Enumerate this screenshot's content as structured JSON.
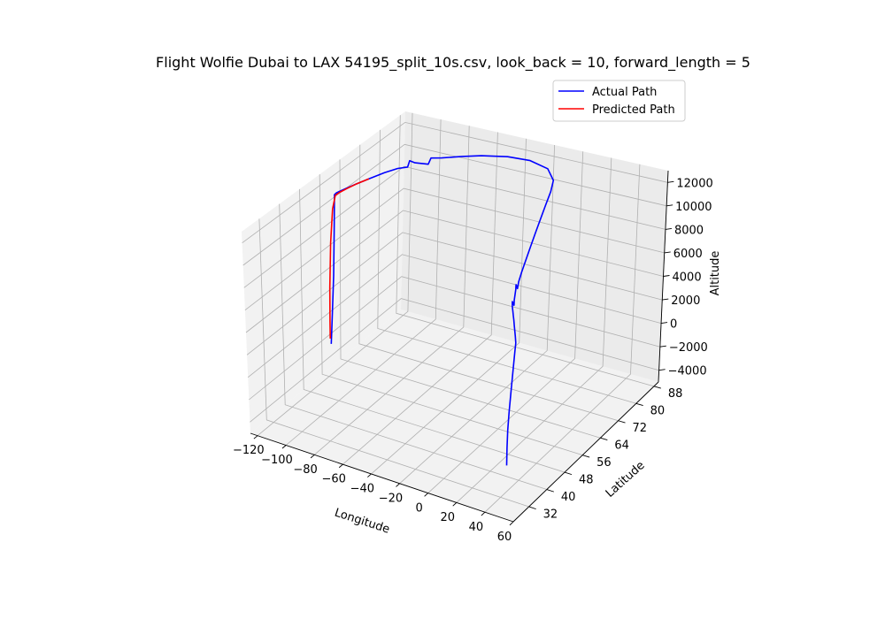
{
  "chart_data": {
    "type": "line",
    "projection": "3d",
    "title": "Flight Wolfie Dubai to LAX 54195_split_10s.csv, look_back = 10, forward_length = 5",
    "xlabel": "Longitude",
    "ylabel": "Latitude",
    "zlabel": "Altitude",
    "xlim": [
      -125,
      60
    ],
    "ylim": [
      25,
      90
    ],
    "zlim": [
      -5000,
      13000
    ],
    "xticks": [
      "−120",
      "−100",
      "−80",
      "−60",
      "−40",
      "−20",
      "0",
      "20",
      "40",
      "60"
    ],
    "yticks": [
      "32",
      "40",
      "48",
      "56",
      "64",
      "72",
      "80",
      "88"
    ],
    "zticks": [
      "−4000",
      "−2000",
      "0",
      "2000",
      "4000",
      "6000",
      "8000",
      "10000",
      "12000"
    ],
    "grid": true,
    "legend": "top-right",
    "series": [
      {
        "name": "Actual Path",
        "color": "#0000ff",
        "points": [
          [
            55.4,
            25.3,
            0
          ],
          [
            55.0,
            25.8,
            1500
          ],
          [
            54.5,
            26.5,
            3000
          ],
          [
            54.0,
            27.5,
            4500
          ],
          [
            53.0,
            29.0,
            6000
          ],
          [
            52.0,
            30.5,
            7500
          ],
          [
            51.0,
            32.0,
            9000
          ],
          [
            50.0,
            33.0,
            9500
          ],
          [
            48.0,
            34.0,
            9800
          ],
          [
            46.0,
            35.0,
            10000
          ],
          [
            44.0,
            36.0,
            10200
          ],
          [
            42.0,
            37.0,
            10400
          ],
          [
            40.0,
            38.0,
            10500
          ],
          [
            38.0,
            39.0,
            10600
          ],
          [
            36.0,
            40.0,
            10700
          ],
          [
            35.0,
            40.6,
            11000
          ],
          [
            35.5,
            41.0,
            10600
          ],
          [
            34.0,
            42.0,
            10800
          ],
          [
            32.0,
            43.5,
            10900
          ],
          [
            30.0,
            45.0,
            10950
          ],
          [
            29.0,
            45.7,
            11200
          ],
          [
            29.5,
            46.0,
            10800
          ],
          [
            27.0,
            48.0,
            10900
          ],
          [
            24.0,
            51.0,
            11000
          ],
          [
            20.0,
            55.0,
            11050
          ],
          [
            15.0,
            60.0,
            11100
          ],
          [
            10.0,
            65.0,
            11150
          ],
          [
            5.0,
            70.0,
            11200
          ],
          [
            0.0,
            75.0,
            11250
          ],
          [
            -5.0,
            80.0,
            11300
          ],
          [
            -10.0,
            84.0,
            11350
          ],
          [
            -20.0,
            87.5,
            11400
          ],
          [
            -35.0,
            89.0,
            11400
          ],
          [
            -50.0,
            88.5,
            11400
          ],
          [
            -65.0,
            86.5,
            11400
          ],
          [
            -75.0,
            84.5,
            11400
          ],
          [
            -85.0,
            82.0,
            11400
          ],
          [
            -90.0,
            80.5,
            11500
          ],
          [
            -91.0,
            80.0,
            11000
          ],
          [
            -96.0,
            77.5,
            11400
          ],
          [
            -98.0,
            76.5,
            11700
          ],
          [
            -98.5,
            76.0,
            11200
          ],
          [
            -102.0,
            74.0,
            11300
          ],
          [
            -106.0,
            71.0,
            11300
          ],
          [
            -110.0,
            67.0,
            11300
          ],
          [
            -113.0,
            63.5,
            11300
          ],
          [
            -115.0,
            61.0,
            11300
          ],
          [
            -116.0,
            59.5,
            11300
          ],
          [
            -117.0,
            58.0,
            11300
          ],
          [
            -117.5,
            57.5,
            11200
          ],
          [
            -117.6,
            57.3,
            8000
          ],
          [
            -117.8,
            57.0,
            4000
          ],
          [
            -118.0,
            56.5,
            1000
          ],
          [
            -118.2,
            56.2,
            -1000
          ],
          [
            -118.3,
            56.0,
            -2000
          ]
        ]
      },
      {
        "name": "Predicted Path",
        "color": "#ff0000",
        "points": [
          [
            -110.0,
            67.0,
            11300
          ],
          [
            -113.0,
            63.5,
            11300
          ],
          [
            -115.0,
            61.0,
            11250
          ],
          [
            -116.5,
            59.0,
            11200
          ],
          [
            -117.4,
            57.8,
            11100
          ],
          [
            -118.0,
            57.0,
            10000
          ],
          [
            -118.8,
            56.5,
            7000
          ],
          [
            -119.2,
            56.2,
            3000
          ],
          [
            -119.0,
            56.0,
            0
          ],
          [
            -118.6,
            55.8,
            -1500
          ]
        ]
      }
    ]
  }
}
